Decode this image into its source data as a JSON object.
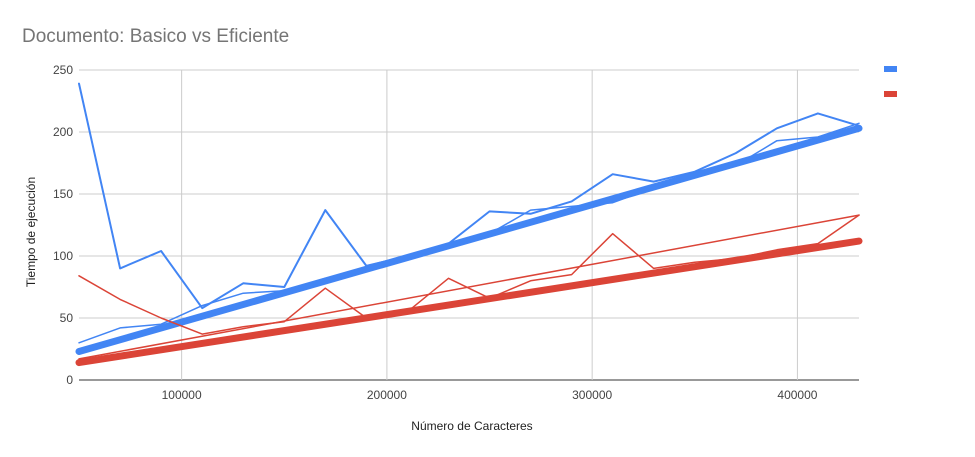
{
  "chart_data": {
    "type": "line",
    "title": "Documento: Basico vs Eficiente",
    "xlabel": "Número de Caracteres",
    "ylabel": "Tiempo de ejecución",
    "xlim": [
      50000,
      430000
    ],
    "ylim": [
      0,
      250
    ],
    "x_ticks": [
      100000,
      200000,
      300000,
      400000
    ],
    "x_tick_labels": [
      "100000",
      "200000",
      "300000",
      "400000"
    ],
    "y_ticks": [
      0,
      50,
      100,
      150,
      200,
      250
    ],
    "y_tick_labels": [
      "0",
      "50",
      "100",
      "150",
      "200",
      "250"
    ],
    "grid": true,
    "legend_position": "top-right",
    "series": [
      {
        "color": "#4285f4",
        "stroke_width": 2,
        "x": [
          50000,
          70000,
          90000,
          110000,
          130000,
          150000,
          170000,
          190000,
          210000,
          230000,
          250000,
          270000,
          290000,
          310000,
          330000,
          350000,
          370000,
          390000,
          410000,
          430000
        ],
        "values": [
          239,
          90,
          104,
          58,
          78,
          75,
          137,
          92,
          100,
          110,
          136,
          134,
          144,
          166,
          160,
          168,
          183,
          203,
          215,
          205
        ]
      },
      {
        "color": "#4285f4",
        "stroke_width": 1.5,
        "x": [
          50000,
          70000,
          90000,
          110000,
          130000,
          150000,
          170000,
          190000,
          210000,
          230000,
          250000,
          270000,
          290000,
          310000,
          330000,
          350000,
          370000,
          390000,
          410000,
          430000
        ],
        "values": [
          30,
          42,
          45,
          60,
          70,
          72,
          82,
          89,
          100,
          108,
          118,
          137,
          140,
          143,
          155,
          168,
          173,
          193,
          196,
          207
        ]
      },
      {
        "color": "#4285f4",
        "stroke_width": 7,
        "x": [
          50000,
          430000
        ],
        "values": [
          23,
          203
        ]
      },
      {
        "color": "#db4437",
        "stroke_width": 1.5,
        "x": [
          50000,
          70000,
          90000,
          110000,
          130000,
          150000,
          170000,
          190000,
          210000,
          230000,
          250000,
          270000,
          290000,
          310000,
          330000,
          350000,
          370000,
          390000,
          410000,
          430000
        ],
        "values": [
          84,
          65,
          50,
          37,
          43,
          47,
          74,
          50,
          55,
          82,
          66,
          80,
          85,
          118,
          90,
          95,
          98,
          105,
          110,
          133
        ]
      },
      {
        "color": "#db4437",
        "stroke_width": 1.5,
        "x": [
          50000,
          430000
        ],
        "values": [
          17,
          133
        ]
      },
      {
        "color": "#db4437",
        "stroke_width": 7,
        "x": [
          50000,
          430000
        ],
        "values": [
          14,
          112
        ]
      }
    ],
    "legend": [
      {
        "color": "#4285f4",
        "label": ""
      },
      {
        "color": "#db4437",
        "label": ""
      }
    ]
  }
}
